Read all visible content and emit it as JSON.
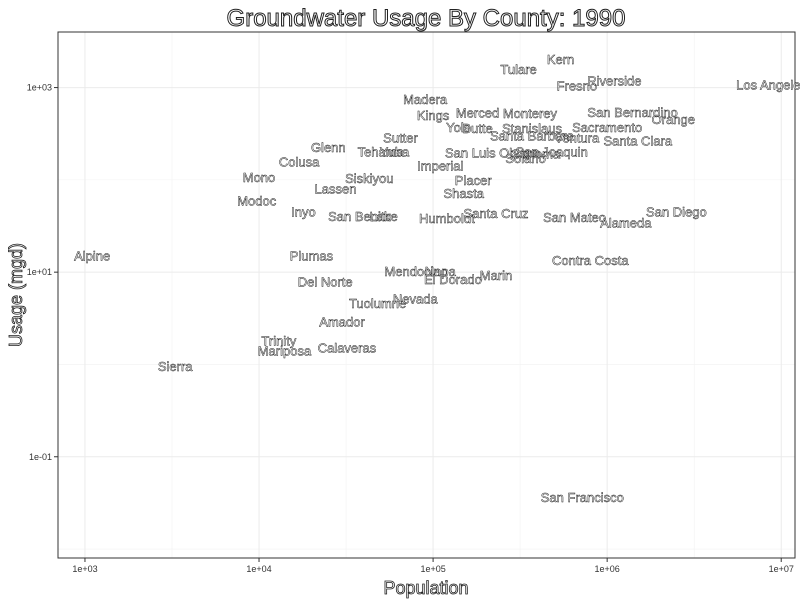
{
  "chart_data": {
    "type": "scatter",
    "title": "Groundwater Usage By County: 1990",
    "xlabel": "Population",
    "ylabel": "Usage (mgd)",
    "x_scale": "log10",
    "y_scale": "log10",
    "xlim": [
      700,
      12000000
    ],
    "ylim": [
      0.008,
      4000
    ],
    "x_ticks": [
      1000,
      10000,
      100000,
      1000000,
      10000000
    ],
    "x_tick_labels": [
      "1e+03",
      "1e+04",
      "1e+05",
      "1e+06",
      "1e+07"
    ],
    "y_ticks": [
      0.1,
      10,
      1000
    ],
    "y_tick_labels": [
      "1e-01",
      "1e+01",
      "1e+03"
    ],
    "grid": true,
    "points": [
      {
        "label": "Alpine",
        "x": 1100,
        "y": 15
      },
      {
        "label": "Sierra",
        "x": 3300,
        "y": 0.95
      },
      {
        "label": "Modoc",
        "x": 9700,
        "y": 59
      },
      {
        "label": "Mono",
        "x": 10000,
        "y": 106
      },
      {
        "label": "Inyo",
        "x": 18000,
        "y": 45
      },
      {
        "label": "Colusa",
        "x": 17000,
        "y": 157
      },
      {
        "label": "Lassen",
        "x": 27500,
        "y": 80
      },
      {
        "label": "Glenn",
        "x": 25000,
        "y": 224
      },
      {
        "label": "Trinity",
        "x": 13000,
        "y": 1.8
      },
      {
        "label": "Mariposa",
        "x": 14000,
        "y": 1.4
      },
      {
        "label": "Amador",
        "x": 30000,
        "y": 2.9
      },
      {
        "label": "Calaveras",
        "x": 32000,
        "y": 1.5
      },
      {
        "label": "Plumas",
        "x": 20000,
        "y": 15
      },
      {
        "label": "Del Norte",
        "x": 24000,
        "y": 7.8
      },
      {
        "label": "Tuolumne",
        "x": 48000,
        "y": 4.6
      },
      {
        "label": "Nevada",
        "x": 79000,
        "y": 5.1
      },
      {
        "label": "Siskiyou",
        "x": 43000,
        "y": 104
      },
      {
        "label": "San Benito",
        "x": 38000,
        "y": 40
      },
      {
        "label": "Lake",
        "x": 52000,
        "y": 40
      },
      {
        "label": "Tehama",
        "x": 50000,
        "y": 200
      },
      {
        "label": "Sutter",
        "x": 65000,
        "y": 283
      },
      {
        "label": "Yuba",
        "x": 60000,
        "y": 200
      },
      {
        "label": "Mendocino",
        "x": 80000,
        "y": 10.2
      },
      {
        "label": "Napa",
        "x": 110000,
        "y": 10.2
      },
      {
        "label": "El Dorado",
        "x": 130000,
        "y": 8.3
      },
      {
        "label": "Marin",
        "x": 230000,
        "y": 9.2
      },
      {
        "label": "Humboldt",
        "x": 120000,
        "y": 38
      },
      {
        "label": "Shasta",
        "x": 150000,
        "y": 71
      },
      {
        "label": "Placer",
        "x": 170000,
        "y": 98
      },
      {
        "label": "Imperial",
        "x": 110000,
        "y": 141
      },
      {
        "label": "San Luis Obispo",
        "x": 220000,
        "y": 195
      },
      {
        "label": "Santa Cruz",
        "x": 230000,
        "y": 43
      },
      {
        "label": "Madera",
        "x": 90000,
        "y": 745
      },
      {
        "label": "Kings",
        "x": 100000,
        "y": 500
      },
      {
        "label": "Merced",
        "x": 180000,
        "y": 527
      },
      {
        "label": "Yolo",
        "x": 140000,
        "y": 370
      },
      {
        "label": "Butte",
        "x": 180000,
        "y": 360
      },
      {
        "label": "Monterey",
        "x": 360000,
        "y": 525
      },
      {
        "label": "Stanislaus",
        "x": 370000,
        "y": 360
      },
      {
        "label": "Santa Barbara",
        "x": 370000,
        "y": 300
      },
      {
        "label": "Sonoma",
        "x": 390000,
        "y": 190
      },
      {
        "label": "Solano",
        "x": 340000,
        "y": 170
      },
      {
        "label": "San Joaquin",
        "x": 480000,
        "y": 200
      },
      {
        "label": "Ventura",
        "x": 670000,
        "y": 285
      },
      {
        "label": "Tulare",
        "x": 310000,
        "y": 1570
      },
      {
        "label": "Kern",
        "x": 540000,
        "y": 2010
      },
      {
        "label": "Fresno",
        "x": 670000,
        "y": 1040
      },
      {
        "label": "Riverside",
        "x": 1100000,
        "y": 1180
      },
      {
        "label": "San Bernardino",
        "x": 1400000,
        "y": 535
      },
      {
        "label": "Orange",
        "x": 2400000,
        "y": 450
      },
      {
        "label": "Sacramento",
        "x": 1000000,
        "y": 370
      },
      {
        "label": "Santa Clara",
        "x": 1500000,
        "y": 265
      },
      {
        "label": "San Mateo",
        "x": 650000,
        "y": 39
      },
      {
        "label": "Alameda",
        "x": 1280000,
        "y": 34
      },
      {
        "label": "San Diego",
        "x": 2500000,
        "y": 45
      },
      {
        "label": "Contra Costa",
        "x": 800000,
        "y": 13.4
      },
      {
        "label": "Los Angeles",
        "x": 8800000,
        "y": 1070
      },
      {
        "label": "San Francisco",
        "x": 720000,
        "y": 0.036
      }
    ]
  }
}
